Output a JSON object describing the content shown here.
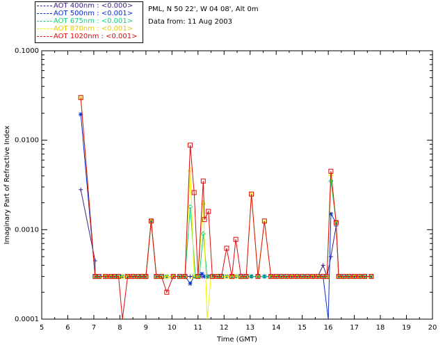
{
  "chart_data": {
    "type": "line",
    "title": "",
    "xlabel": "Time (GMT)",
    "ylabel": "Imaginary Part of Refractive Index",
    "xlim": [
      5,
      20
    ],
    "ylim": [
      0.0001,
      0.1
    ],
    "yscale": "log",
    "x_ticks": [
      "5",
      "6",
      "7",
      "8",
      "9",
      "10",
      "11",
      "12",
      "13",
      "14",
      "15",
      "16",
      "17",
      "18",
      "19",
      "20"
    ],
    "y_ticks": [
      "0.0001",
      "0.0010",
      "0.0100",
      "0.1000"
    ],
    "legend_position": "top-left, outside plot",
    "info_lines": [
      "PML, N 50 22', W 04 08', Alt 0m",
      "Data from: 11 Aug 2003"
    ],
    "series": [
      {
        "name": "AOT  400nm : <0.000>",
        "color": "#3c1e82",
        "marker": "plus",
        "points": [
          [
            6.5,
            0.0028
          ],
          [
            7.05,
            0.00045
          ],
          [
            7.05,
            0.0003
          ],
          [
            7.2,
            0.0003
          ],
          [
            7.45,
            0.0003
          ],
          [
            7.65,
            0.0003
          ],
          [
            7.8,
            0.0003
          ],
          [
            7.95,
            0.0003
          ],
          [
            8.1,
            0.0003
          ],
          [
            8.3,
            0.0003
          ],
          [
            8.5,
            0.0003
          ],
          [
            8.7,
            0.0003
          ],
          [
            8.85,
            0.0003
          ],
          [
            9.0,
            0.0003
          ],
          [
            9.2,
            0.00125
          ],
          [
            9.4,
            0.0003
          ],
          [
            9.6,
            0.0003
          ],
          [
            9.8,
            0.0003
          ],
          [
            10.05,
            0.0003
          ],
          [
            10.3,
            0.0003
          ],
          [
            10.5,
            0.0003
          ],
          [
            10.7,
            0.0003
          ],
          [
            10.9,
            0.0003
          ],
          [
            11.05,
            0.0003
          ],
          [
            11.15,
            0.0003
          ],
          [
            11.25,
            0.0003
          ],
          [
            11.4,
            0.0003
          ],
          [
            11.55,
            0.0003
          ],
          [
            11.75,
            0.0003
          ],
          [
            11.9,
            0.0003
          ],
          [
            12.1,
            0.0003
          ],
          [
            12.3,
            0.0003
          ],
          [
            12.45,
            0.0003
          ],
          [
            12.65,
            0.0003
          ],
          [
            12.85,
            0.0003
          ],
          [
            13.05,
            0.0003
          ],
          [
            13.3,
            0.0003
          ],
          [
            13.55,
            0.0003
          ],
          [
            13.8,
            0.0003
          ],
          [
            14.0,
            0.0003
          ],
          [
            14.2,
            0.0003
          ],
          [
            14.4,
            0.0003
          ],
          [
            14.6,
            0.0003
          ],
          [
            14.8,
            0.0003
          ],
          [
            15.0,
            0.0003
          ],
          [
            15.2,
            0.0003
          ],
          [
            15.4,
            0.0003
          ],
          [
            15.6,
            0.0003
          ],
          [
            15.8,
            0.0004
          ],
          [
            15.95,
            0.0003
          ],
          [
            16.1,
            0.0005
          ],
          [
            16.3,
            0.0011
          ],
          [
            16.4,
            0.0003
          ],
          [
            16.6,
            0.0003
          ],
          [
            16.8,
            0.0003
          ],
          [
            17.0,
            0.0003
          ],
          [
            17.2,
            0.0003
          ],
          [
            17.4,
            0.0003
          ],
          [
            17.65,
            0.0003
          ]
        ]
      },
      {
        "name": "AOT  500nm : <0.001>",
        "color": "#0a2dd2",
        "marker": "star",
        "points": [
          [
            6.5,
            0.0195
          ],
          [
            7.05,
            0.0003
          ],
          [
            7.2,
            0.0003
          ],
          [
            7.45,
            0.0003
          ],
          [
            7.65,
            0.0003
          ],
          [
            7.8,
            0.0003
          ],
          [
            7.95,
            0.0003
          ],
          [
            8.1,
            0.0003
          ],
          [
            8.3,
            0.0003
          ],
          [
            8.5,
            0.0003
          ],
          [
            8.7,
            0.0003
          ],
          [
            8.85,
            0.0003
          ],
          [
            9.0,
            0.0003
          ],
          [
            9.2,
            0.00125
          ],
          [
            9.4,
            0.0003
          ],
          [
            9.6,
            0.0003
          ],
          [
            9.8,
            0.0003
          ],
          [
            10.05,
            0.0003
          ],
          [
            10.3,
            0.0003
          ],
          [
            10.5,
            0.0003
          ],
          [
            10.7,
            0.00025
          ],
          [
            10.85,
            0.0003
          ],
          [
            11.0,
            0.0003
          ],
          [
            11.15,
            0.00032
          ],
          [
            11.25,
            0.0003
          ],
          [
            11.4,
            0.0003
          ],
          [
            11.55,
            0.0003
          ],
          [
            11.75,
            0.0003
          ],
          [
            11.9,
            0.0003
          ],
          [
            12.1,
            0.0003
          ],
          [
            12.3,
            0.0003
          ],
          [
            12.45,
            0.0003
          ],
          [
            12.65,
            0.0003
          ],
          [
            12.85,
            0.0003
          ],
          [
            13.05,
            0.0003
          ],
          [
            13.3,
            0.0003
          ],
          [
            13.55,
            0.0003
          ],
          [
            13.8,
            0.0003
          ],
          [
            14.0,
            0.0003
          ],
          [
            14.2,
            0.0003
          ],
          [
            14.4,
            0.0003
          ],
          [
            14.6,
            0.0003
          ],
          [
            14.8,
            0.0003
          ],
          [
            15.0,
            0.0003
          ],
          [
            15.2,
            0.0003
          ],
          [
            15.4,
            0.0003
          ],
          [
            15.6,
            0.0003
          ],
          [
            15.8,
            0.0003
          ],
          [
            16.0,
            0.0001
          ],
          [
            16.1,
            0.0015
          ],
          [
            16.3,
            0.0012
          ],
          [
            16.4,
            0.0003
          ],
          [
            16.6,
            0.0003
          ],
          [
            16.8,
            0.0003
          ],
          [
            17.0,
            0.0003
          ],
          [
            17.2,
            0.0003
          ],
          [
            17.4,
            0.0003
          ],
          [
            17.65,
            0.0003
          ]
        ]
      },
      {
        "name": "AOT  675nm : <0.001>",
        "color": "#14d278",
        "marker": "diamond",
        "points": [
          [
            7.05,
            0.0003
          ],
          [
            7.2,
            0.0003
          ],
          [
            7.45,
            0.0003
          ],
          [
            7.65,
            0.0003
          ],
          [
            7.8,
            0.0003
          ],
          [
            7.95,
            0.0003
          ],
          [
            8.1,
            0.0003
          ],
          [
            8.3,
            0.0003
          ],
          [
            8.5,
            0.0003
          ],
          [
            8.7,
            0.0003
          ],
          [
            8.85,
            0.0003
          ],
          [
            9.0,
            0.0003
          ],
          [
            9.2,
            0.00125
          ],
          [
            9.4,
            0.0003
          ],
          [
            9.6,
            0.0003
          ],
          [
            9.8,
            0.0003
          ],
          [
            10.05,
            0.0003
          ],
          [
            10.3,
            0.0003
          ],
          [
            10.5,
            0.0003
          ],
          [
            10.7,
            0.0018
          ],
          [
            10.9,
            0.0003
          ],
          [
            11.05,
            0.0003
          ],
          [
            11.2,
            0.0009
          ],
          [
            11.35,
            0.0003
          ],
          [
            11.55,
            0.0003
          ],
          [
            11.75,
            0.0003
          ],
          [
            11.9,
            0.0003
          ],
          [
            12.1,
            0.0003
          ],
          [
            12.3,
            0.0003
          ],
          [
            12.45,
            0.0003
          ],
          [
            12.65,
            0.0003
          ],
          [
            12.85,
            0.0003
          ],
          [
            13.05,
            0.0003
          ],
          [
            13.3,
            0.0003
          ],
          [
            13.55,
            0.0003
          ],
          [
            13.8,
            0.0003
          ],
          [
            14.0,
            0.0003
          ],
          [
            14.2,
            0.0003
          ],
          [
            14.4,
            0.0003
          ],
          [
            14.6,
            0.0003
          ],
          [
            14.8,
            0.0003
          ],
          [
            15.0,
            0.0003
          ],
          [
            15.2,
            0.0003
          ],
          [
            15.4,
            0.0003
          ],
          [
            15.6,
            0.0003
          ],
          [
            15.8,
            0.0003
          ],
          [
            15.95,
            0.0003
          ],
          [
            16.1,
            0.0035
          ],
          [
            16.3,
            0.0012
          ],
          [
            16.4,
            0.0003
          ],
          [
            16.6,
            0.0003
          ],
          [
            16.8,
            0.0003
          ],
          [
            17.0,
            0.0003
          ],
          [
            17.2,
            0.0003
          ],
          [
            17.4,
            0.0003
          ],
          [
            17.65,
            0.0003
          ]
        ]
      },
      {
        "name": "AOT  870nm : <0.001>",
        "color": "#f0f000",
        "marker": "triangle",
        "points": [
          [
            6.5,
            0.03
          ],
          [
            7.05,
            0.0003
          ],
          [
            7.2,
            0.0003
          ],
          [
            7.45,
            0.0003
          ],
          [
            7.65,
            0.0003
          ],
          [
            7.8,
            0.0003
          ],
          [
            7.95,
            0.0003
          ],
          [
            8.1,
            0.0003
          ],
          [
            8.3,
            0.0003
          ],
          [
            8.5,
            0.0003
          ],
          [
            8.7,
            0.0003
          ],
          [
            8.85,
            0.0003
          ],
          [
            9.0,
            0.0003
          ],
          [
            9.2,
            0.00125
          ],
          [
            9.4,
            0.0003
          ],
          [
            9.6,
            0.0003
          ],
          [
            9.8,
            0.0003
          ],
          [
            10.05,
            0.0003
          ],
          [
            10.3,
            0.0003
          ],
          [
            10.5,
            0.0003
          ],
          [
            10.7,
            0.0047
          ],
          [
            10.85,
            0.0003
          ],
          [
            11.0,
            0.0003
          ],
          [
            11.2,
            0.002
          ],
          [
            11.35,
            0.0001
          ],
          [
            11.5,
            0.0003
          ],
          [
            11.75,
            0.0003
          ],
          [
            11.9,
            0.0003
          ],
          [
            12.1,
            0.0003
          ],
          [
            12.3,
            0.0003
          ],
          [
            12.45,
            0.0003
          ],
          [
            12.65,
            0.0003
          ],
          [
            12.85,
            0.0003
          ],
          [
            13.05,
            0.0025
          ],
          [
            13.3,
            0.0003
          ],
          [
            13.55,
            0.00125
          ],
          [
            13.8,
            0.0003
          ],
          [
            14.0,
            0.0003
          ],
          [
            14.2,
            0.0003
          ],
          [
            14.4,
            0.0003
          ],
          [
            14.6,
            0.0003
          ],
          [
            14.8,
            0.0003
          ],
          [
            15.0,
            0.0003
          ],
          [
            15.2,
            0.0003
          ],
          [
            15.4,
            0.0003
          ],
          [
            15.6,
            0.0003
          ],
          [
            15.8,
            0.0003
          ],
          [
            15.95,
            0.0003
          ],
          [
            16.1,
            0.0042
          ],
          [
            16.3,
            0.0012
          ],
          [
            16.4,
            0.0003
          ],
          [
            16.6,
            0.0003
          ],
          [
            16.8,
            0.0003
          ],
          [
            17.0,
            0.0003
          ],
          [
            17.2,
            0.0003
          ],
          [
            17.4,
            0.0003
          ],
          [
            17.65,
            0.0003
          ]
        ]
      },
      {
        "name": "AOT 1020nm : <0.001>",
        "color": "#dc0a0a",
        "marker": "square",
        "points": [
          [
            6.5,
            0.03
          ],
          [
            7.05,
            0.0003
          ],
          [
            7.2,
            0.0003
          ],
          [
            7.45,
            0.0003
          ],
          [
            7.65,
            0.0003
          ],
          [
            7.8,
            0.0003
          ],
          [
            7.95,
            0.0003
          ],
          [
            8.1,
            0.0001
          ],
          [
            8.3,
            0.0003
          ],
          [
            8.5,
            0.0003
          ],
          [
            8.7,
            0.0003
          ],
          [
            8.85,
            0.0003
          ],
          [
            9.0,
            0.0003
          ],
          [
            9.2,
            0.00125
          ],
          [
            9.4,
            0.0003
          ],
          [
            9.6,
            0.0003
          ],
          [
            9.8,
            0.0002
          ],
          [
            10.05,
            0.0003
          ],
          [
            10.3,
            0.0003
          ],
          [
            10.5,
            0.0003
          ],
          [
            10.7,
            0.0088
          ],
          [
            10.85,
            0.0026
          ],
          [
            11.0,
            0.0003
          ],
          [
            11.2,
            0.0035
          ],
          [
            11.25,
            0.0013
          ],
          [
            11.4,
            0.0016
          ],
          [
            11.55,
            0.0003
          ],
          [
            11.75,
            0.0003
          ],
          [
            11.9,
            0.0003
          ],
          [
            12.1,
            0.00062
          ],
          [
            12.3,
            0.0003
          ],
          [
            12.45,
            0.00078
          ],
          [
            12.65,
            0.0003
          ],
          [
            12.85,
            0.0003
          ],
          [
            13.05,
            0.0025
          ],
          [
            13.3,
            0.0003
          ],
          [
            13.55,
            0.00125
          ],
          [
            13.8,
            0.0003
          ],
          [
            14.0,
            0.0003
          ],
          [
            14.2,
            0.0003
          ],
          [
            14.4,
            0.0003
          ],
          [
            14.6,
            0.0003
          ],
          [
            14.8,
            0.0003
          ],
          [
            15.0,
            0.0003
          ],
          [
            15.2,
            0.0003
          ],
          [
            15.4,
            0.0003
          ],
          [
            15.6,
            0.0003
          ],
          [
            15.8,
            0.0003
          ],
          [
            15.95,
            0.0003
          ],
          [
            16.1,
            0.0045
          ],
          [
            16.3,
            0.0012
          ],
          [
            16.4,
            0.0003
          ],
          [
            16.6,
            0.0003
          ],
          [
            16.8,
            0.0003
          ],
          [
            17.0,
            0.0003
          ],
          [
            17.2,
            0.0003
          ],
          [
            17.4,
            0.0003
          ],
          [
            17.65,
            0.0003
          ]
        ]
      }
    ]
  }
}
